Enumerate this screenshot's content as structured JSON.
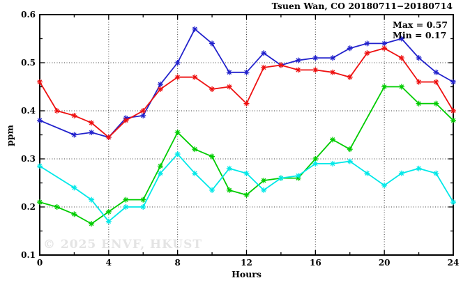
{
  "watermark": "© 2025 ENVF, HKUST",
  "chart_data": {
    "type": "line",
    "title": "Tsuen Wan, CO 20180711−20180714",
    "xlabel": "Hours",
    "ylabel": "ppm",
    "annotations": {
      "max_label": "Max = 0.57",
      "min_label": "Min = 0.17"
    },
    "max": 0.57,
    "min": 0.17,
    "xlim": [
      0,
      24
    ],
    "ylim": [
      0.1,
      0.6
    ],
    "x_major_ticks": [
      0,
      4,
      8,
      12,
      16,
      20,
      24
    ],
    "x_minor_ticks": [
      2,
      6,
      10,
      14,
      18,
      22
    ],
    "x_tick_labels": [
      "0",
      "4",
      "8",
      "12",
      "16",
      "20",
      "24"
    ],
    "y_major_ticks": [
      0.1,
      0.2,
      0.3,
      0.4,
      0.5,
      0.6
    ],
    "y_minor_ticks": [
      0.15,
      0.25,
      0.35,
      0.45,
      0.55
    ],
    "y_tick_labels": [
      "0.1",
      "0.2",
      "0.3",
      "0.4",
      "0.5",
      "0.6"
    ],
    "grid": true,
    "legend": "none",
    "marker": "asterisk",
    "x": [
      0,
      1,
      2,
      3,
      4,
      5,
      6,
      7,
      8,
      9,
      10,
      11,
      12,
      13,
      14,
      15,
      16,
      17,
      18,
      19,
      20,
      21,
      22,
      23,
      24
    ],
    "series": [
      {
        "name": "blue",
        "color": "#2222cc",
        "values": [
          0.38,
          null,
          0.35,
          0.355,
          0.345,
          0.385,
          0.39,
          0.455,
          0.5,
          0.57,
          0.54,
          0.48,
          0.48,
          0.52,
          0.495,
          0.505,
          0.51,
          0.51,
          0.53,
          0.54,
          0.54,
          0.55,
          0.51,
          0.48,
          0.46
        ]
      },
      {
        "name": "red",
        "color": "#ee1111",
        "values": [
          0.46,
          0.4,
          0.39,
          0.375,
          0.345,
          0.38,
          0.4,
          0.445,
          0.47,
          0.47,
          0.445,
          0.45,
          0.415,
          0.49,
          0.495,
          0.485,
          0.485,
          0.48,
          0.47,
          0.52,
          0.53,
          0.51,
          0.46,
          0.46,
          0.4
        ]
      },
      {
        "name": "green",
        "color": "#00cc00",
        "values": [
          0.21,
          0.2,
          0.185,
          0.165,
          0.19,
          0.215,
          0.215,
          0.285,
          0.355,
          0.32,
          0.305,
          0.235,
          0.225,
          0.255,
          0.26,
          0.26,
          0.3,
          0.34,
          0.32,
          null,
          0.45,
          0.45,
          0.415,
          0.415,
          0.38
        ]
      },
      {
        "name": "cyan",
        "color": "#00e8e8",
        "values": [
          0.285,
          null,
          0.24,
          0.215,
          0.17,
          0.2,
          0.2,
          0.27,
          0.31,
          0.27,
          0.235,
          0.28,
          0.27,
          0.235,
          0.26,
          0.265,
          0.29,
          0.29,
          0.295,
          0.27,
          0.245,
          0.27,
          0.28,
          0.27,
          0.21
        ]
      }
    ]
  }
}
